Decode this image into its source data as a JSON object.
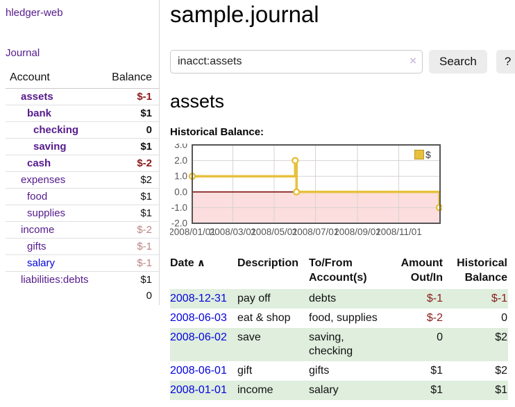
{
  "app": {
    "brand": "hledger-web"
  },
  "nav": {
    "journal": "Journal"
  },
  "colors": {
    "purple_link": "#551a8b",
    "blue_link": "#0202e0",
    "negative_strong": "#8b1a1a",
    "negative_muted": "#bc8383",
    "row_shade_green": "#dfeedd",
    "chart_line_gold": "#e7c13d",
    "chart_negative_fill": "#fcdede",
    "chart_zero_line": "#7d1414"
  },
  "sidebar": {
    "columns": {
      "account": "Account",
      "balance": "Balance"
    },
    "accounts": [
      {
        "name": "assets",
        "depth": 1,
        "balance": "$-1",
        "bold": true,
        "balance_style": "neg-strong",
        "link_style": "purple"
      },
      {
        "name": "bank",
        "depth": 2,
        "balance": "$1",
        "bold": true,
        "balance_style": "pos",
        "link_style": "purple"
      },
      {
        "name": "checking",
        "depth": 3,
        "balance": "0",
        "bold": true,
        "balance_style": "pos",
        "link_style": "purple"
      },
      {
        "name": "saving",
        "depth": 3,
        "balance": "$1",
        "bold": true,
        "balance_style": "pos",
        "link_style": "purple"
      },
      {
        "name": "cash",
        "depth": 2,
        "balance": "$-2",
        "bold": true,
        "balance_style": "neg-strong",
        "link_style": "purple"
      },
      {
        "name": "expenses",
        "depth": 1,
        "balance": "$2",
        "bold": false,
        "balance_style": "pos",
        "link_style": "purple"
      },
      {
        "name": "food",
        "depth": 2,
        "balance": "$1",
        "bold": false,
        "balance_style": "pos",
        "link_style": "purple"
      },
      {
        "name": "supplies",
        "depth": 2,
        "balance": "$1",
        "bold": false,
        "balance_style": "pos",
        "link_style": "purple"
      },
      {
        "name": "income",
        "depth": 1,
        "balance": "$-2",
        "bold": false,
        "balance_style": "neg-muted",
        "link_style": "purple"
      },
      {
        "name": "gifts",
        "depth": 2,
        "balance": "$-1",
        "bold": false,
        "balance_style": "neg-muted",
        "link_style": "purple"
      },
      {
        "name": "salary",
        "depth": 2,
        "balance": "$-1",
        "bold": false,
        "balance_style": "neg-muted",
        "link_style": "blue"
      },
      {
        "name": "liabilities:debts",
        "depth": 1,
        "balance": "$1",
        "bold": false,
        "balance_style": "pos",
        "link_style": "purple"
      }
    ],
    "total": "0"
  },
  "main": {
    "title": "sample.journal",
    "search": {
      "value": "inacct:assets",
      "clear_glyph": "×",
      "submit_label": "Search",
      "help_label": "?"
    },
    "account_title": "assets",
    "chart_heading": "Historical Balance:"
  },
  "chart_data": {
    "type": "line",
    "step": true,
    "title": "Historical Balance",
    "x_domain": [
      "2008-01-01",
      "2009-01-01"
    ],
    "ylim": [
      -2,
      3
    ],
    "yticks": [
      3.0,
      2.0,
      1.0,
      0.0,
      -1.0,
      -2.0
    ],
    "xticks": [
      {
        "label": "2008/01/01",
        "date": "2008-01-01"
      },
      {
        "label": "2008/03/01",
        "date": "2008-03-01"
      },
      {
        "label": "2008/05/01",
        "date": "2008-05-01"
      },
      {
        "label": "2008/07/01",
        "date": "2008-07-01"
      },
      {
        "label": "2008/09/01",
        "date": "2008-09-01"
      },
      {
        "label": "2008/11/01",
        "date": "2008-11-01"
      }
    ],
    "series": [
      {
        "name": "$",
        "color": "#e7c13d",
        "points": [
          {
            "date": "2008-01-01",
            "value": 1
          },
          {
            "date": "2008-06-01",
            "value": 2
          },
          {
            "date": "2008-06-03",
            "value": 0
          },
          {
            "date": "2008-12-31",
            "value": -1
          }
        ]
      }
    ],
    "legend_position": "top-right",
    "negative_region": {
      "from": 0,
      "to": -2
    },
    "grid": true
  },
  "register": {
    "columns": [
      "Date",
      "Description",
      "To/From Account(s)",
      "Amount Out/In",
      "Historical Balance"
    ],
    "sort_glyph": "∧",
    "rows": [
      {
        "date": "2008-12-31",
        "description": "pay off",
        "accounts": "debts",
        "amount": "$-1",
        "amount_style": "neg-strong",
        "balance": "$-1",
        "balance_style": "neg-strong",
        "shaded": true
      },
      {
        "date": "2008-06-03",
        "description": "eat & shop",
        "accounts": "food, supplies",
        "amount": "$-2",
        "amount_style": "neg-strong",
        "balance": "0",
        "balance_style": "pos",
        "shaded": false
      },
      {
        "date": "2008-06-02",
        "description": "save",
        "accounts": "saving, checking",
        "amount": "0",
        "amount_style": "pos",
        "balance": "$2",
        "balance_style": "pos",
        "shaded": true
      },
      {
        "date": "2008-06-01",
        "description": "gift",
        "accounts": "gifts",
        "amount": "$1",
        "amount_style": "pos",
        "balance": "$2",
        "balance_style": "pos",
        "shaded": false
      },
      {
        "date": "2008-01-01",
        "description": "income",
        "accounts": "salary",
        "amount": "$1",
        "amount_style": "pos",
        "balance": "$1",
        "balance_style": "pos",
        "shaded": true
      }
    ]
  }
}
